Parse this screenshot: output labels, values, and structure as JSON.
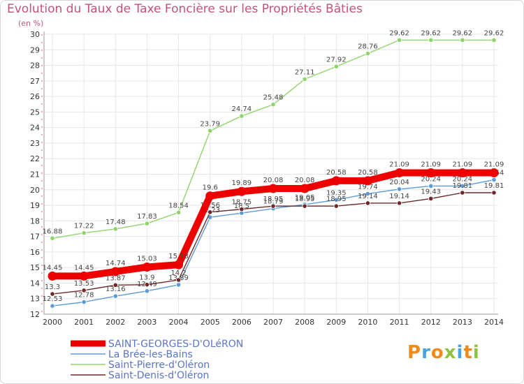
{
  "chart_data": {
    "type": "line",
    "title": "Evolution du Taux de Taxe Foncière sur les Propriétés Bâties",
    "ylabel": "(en %)",
    "xlabel": "",
    "x": [
      "2000",
      "2001",
      "2002",
      "2003",
      "2004",
      "2005",
      "2006",
      "2007",
      "2008",
      "2009",
      "2010",
      "2011",
      "2012",
      "2013",
      "2014"
    ],
    "ylim": [
      12,
      30
    ],
    "yticks": [
      12,
      13,
      14,
      15,
      16,
      17,
      18,
      19,
      20,
      21,
      22,
      23,
      24,
      25,
      26,
      27,
      28,
      29,
      30
    ],
    "grid": true,
    "series": [
      {
        "name": "Saint-Pierre-d'Oléron",
        "color": "#8fd46a",
        "values": [
          16.88,
          17.22,
          17.48,
          17.83,
          18.54,
          23.79,
          24.74,
          25.48,
          27.11,
          27.92,
          28.76,
          29.62,
          29.62,
          29.62,
          29.62
        ],
        "labels": [
          "16.88",
          "17.22",
          "17.48",
          "17.83",
          "18.54",
          "23.79",
          "24.74",
          "25.48",
          "27.11",
          "27.92",
          "28.76",
          "29.62",
          "29.62",
          "29.62",
          "29.62"
        ]
      },
      {
        "name": "La Brée-les-Bains",
        "color": "#5b9bd5",
        "values": [
          12.53,
          12.78,
          13.16,
          13.49,
          13.89,
          18.23,
          18.5,
          18.79,
          19.05,
          19.35,
          19.74,
          20.04,
          20.24,
          20.24,
          20.64
        ],
        "labels": [
          "12.53",
          "12.78",
          "13.16",
          "13.49",
          "13.89",
          "18.23",
          "18.5",
          "18.79",
          "19.05",
          "19.35",
          "19.74",
          "20.04",
          "20.24",
          "20.24",
          "20.64"
        ]
      },
      {
        "name": "Saint-Denis-d'Oléron",
        "color": "#6e2a2a",
        "values": [
          13.3,
          13.53,
          13.87,
          13.9,
          14.2,
          18.56,
          18.75,
          18.95,
          18.95,
          18.95,
          19.14,
          19.14,
          19.43,
          19.81,
          19.81
        ],
        "labels": [
          "13.3",
          "13.53",
          "13.87",
          "13.9",
          "14.2",
          "18.56",
          "18.75",
          "18.95",
          "18.95",
          "18.95",
          "19.14",
          "19.14",
          "19.43",
          "19.81",
          "19.81"
        ]
      },
      {
        "name": "SAINT-GEORGES-D'OLéRON",
        "color": "#ee0000",
        "values": [
          14.45,
          14.45,
          14.74,
          15.03,
          15.18,
          19.6,
          19.89,
          20.08,
          20.08,
          20.58,
          20.58,
          21.09,
          21.09,
          21.09,
          21.09
        ],
        "labels": [
          "14.45",
          "14.45",
          "14.74",
          "15.03",
          "15.18",
          "19.6",
          "19.89",
          "20.08",
          "20.08",
          "20.58",
          "20.58",
          "21.09",
          "21.09",
          "21.09",
          "21.09"
        ]
      }
    ],
    "legend": [
      "SAINT-GEORGES-D'OLéRON",
      "La Brée-les-Bains",
      "Saint-Pierre-d'Oléron",
      "Saint-Denis-d'Oléron"
    ],
    "legend_position": "bottom-left"
  },
  "logo": {
    "text": "Proxiti",
    "colors": [
      "#f08a1c",
      "#4aa3df",
      "#f08a1c",
      "#8cc43f",
      "#4aa3df",
      "#f08a1c",
      "#8cc43f"
    ]
  }
}
